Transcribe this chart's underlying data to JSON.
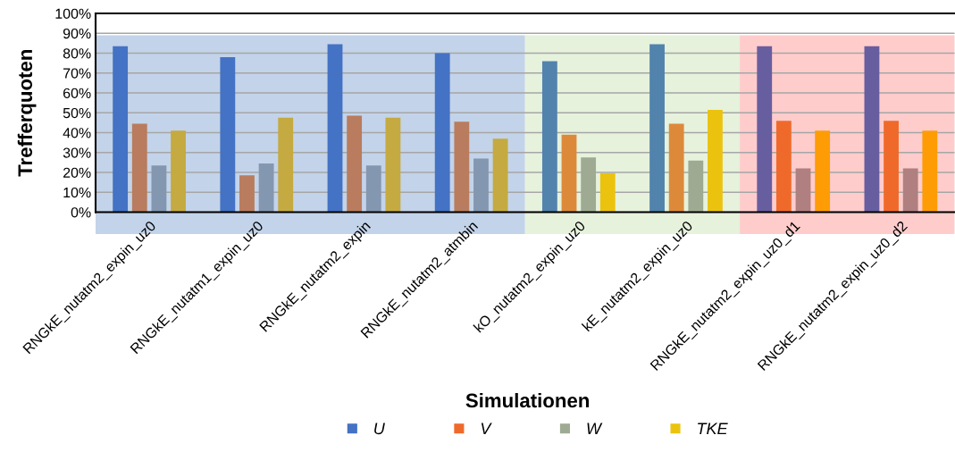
{
  "chart_data": {
    "type": "bar",
    "xlabel": "Simulationen",
    "ylabel": "Trefferquoten",
    "categories": [
      "RNGkE_nutatm2_expin_uz0",
      "RNGkE_nutatm1_expin_uz0",
      "RNGkE_nutatm2_expin",
      "RNGkE_nutatm2_atmbin",
      "kO_nutatm2_expin_uz0",
      "kE_nutatm2_expin_uz0",
      "RNGkE_nutatm2_expin_uz0_d1",
      "RNGkE_nutatm2_expin_uz0_d2"
    ],
    "series": [
      {
        "name": "U",
        "color": "#4472c4",
        "colors": [
          "#4472c4",
          "#4472c4",
          "#4472c4",
          "#4472c4",
          "#5183ad",
          "#5183ad",
          "#675ea0",
          "#675ea0"
        ],
        "values": [
          83.5,
          78,
          84.5,
          80,
          76,
          84.5,
          83.5,
          83.5
        ]
      },
      {
        "name": "V",
        "color": "#ef6a2a",
        "colors": [
          "#b97c5e",
          "#b97c5e",
          "#b97c5e",
          "#b97c5e",
          "#dc8a3a",
          "#dc8a3a",
          "#ef6a2a",
          "#ef6a2a"
        ],
        "values": [
          44.5,
          18.5,
          48.5,
          45.5,
          39,
          44.5,
          46,
          46
        ]
      },
      {
        "name": "W",
        "color": "#9eab92",
        "colors": [
          "#8497b0",
          "#8497b0",
          "#8497b0",
          "#8497b0",
          "#9eab92",
          "#9eab92",
          "#b07f7f",
          "#b07f7f"
        ],
        "values": [
          23.5,
          24.5,
          23.5,
          27,
          27.5,
          26,
          22,
          22
        ]
      },
      {
        "name": "TKE",
        "color": "#ebc30f",
        "colors": [
          "#c4aa40",
          "#c4aa40",
          "#c4aa40",
          "#c4aa40",
          "#ebc30f",
          "#ebc30f",
          "#fe9c05",
          "#fe9c05"
        ],
        "values": [
          41,
          47.5,
          47.5,
          37,
          19.5,
          51.5,
          41,
          41
        ]
      }
    ],
    "ylim": [
      0,
      100
    ],
    "yticks": [
      {
        "value": 0,
        "label": "0%"
      },
      {
        "value": 10,
        "label": "10%"
      },
      {
        "value": 20,
        "label": "20%"
      },
      {
        "value": 30,
        "label": "30%"
      },
      {
        "value": 40,
        "label": "40%"
      },
      {
        "value": 50,
        "label": "50%"
      },
      {
        "value": 60,
        "label": "60%"
      },
      {
        "value": 70,
        "label": "70%"
      },
      {
        "value": 80,
        "label": "80%"
      },
      {
        "value": 90,
        "label": "90%"
      },
      {
        "value": 100,
        "label": "100%"
      }
    ],
    "bands": [
      {
        "axis": "x",
        "from": "RNGkE_nutatm2_expin_uz0",
        "to": "RNGkE_nutatm2_atmbin",
        "color": "#c3d3e9"
      },
      {
        "axis": "x",
        "from": "kO_nutatm2_expin_uz0",
        "to": "kE_nutatm2_expin_uz0",
        "color": "#e6f2dc"
      },
      {
        "axis": "x",
        "from": "RNGkE_nutatm2_expin_uz0_d1",
        "to": "RNGkE_nutatm2_expin_uz0_d2",
        "color": "#ffcccc"
      }
    ],
    "grid": "y",
    "legend": "bottom"
  }
}
